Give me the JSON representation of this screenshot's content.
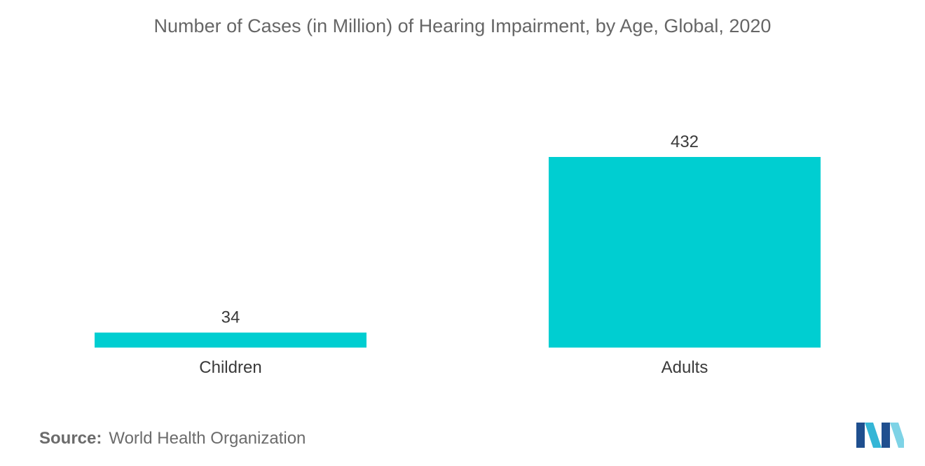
{
  "chart_data": {
    "type": "bar",
    "title": "Number of Cases (in Million) of Hearing Impairment, by Age, Global, 2020",
    "categories": [
      "Children",
      "Adults"
    ],
    "values": [
      34,
      432
    ],
    "data_labels": [
      "34",
      "432"
    ],
    "xlabel": "",
    "ylabel": "",
    "ylim": [
      0,
      432
    ],
    "grid": false,
    "legend": "none",
    "bar_color": "#00CED1"
  },
  "source": {
    "label": "Source:",
    "text": "World Health Organization"
  },
  "logo": {
    "icon": "mordor-intelligence-logo-icon",
    "colors": [
      "#1f4f8f",
      "#35b6d6",
      "#7ed3e6"
    ]
  }
}
